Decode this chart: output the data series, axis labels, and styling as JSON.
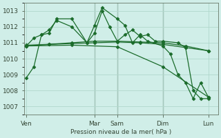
{
  "background_color": "#d0eee8",
  "grid_color": "#b0d8cc",
  "line_color": "#1a6b2a",
  "xlabel": "Pression niveau de la mer( hPa )",
  "ylim": [
    1006.5,
    1013.5
  ],
  "yticks": [
    1007,
    1008,
    1009,
    1010,
    1011,
    1012,
    1013
  ],
  "xtick_labels": [
    "Ven",
    "Mar",
    "Sam",
    "Dim",
    "Lun"
  ],
  "xtick_positions": [
    0,
    9,
    12,
    18,
    24
  ],
  "xlim": [
    -0.3,
    25.3
  ],
  "series": [
    {
      "x": [
        0,
        1,
        2,
        3,
        4,
        6,
        8,
        9,
        10,
        12,
        13,
        14,
        15,
        16,
        18,
        19,
        20,
        21,
        22,
        23,
        24
      ],
      "y": [
        1008.8,
        1009.5,
        1011.5,
        1011.6,
        1012.5,
        1012.5,
        1011.0,
        1012.1,
        1013.2,
        1012.5,
        1012.1,
        1011.0,
        1011.5,
        1011.1,
        1010.8,
        1010.3,
        1009.0,
        1008.5,
        1007.5,
        1008.5,
        1007.6
      ]
    },
    {
      "x": [
        0,
        3,
        6,
        9,
        12,
        15,
        18,
        21,
        24
      ],
      "y": [
        1010.85,
        1010.9,
        1010.95,
        1011.0,
        1011.05,
        1011.0,
        1010.9,
        1010.7,
        1010.5
      ]
    },
    {
      "x": [
        0,
        3,
        6,
        9,
        12,
        15,
        18,
        21,
        24
      ],
      "y": [
        1010.8,
        1010.9,
        1011.0,
        1011.1,
        1011.1,
        1011.05,
        1011.0,
        1010.8,
        1010.5
      ]
    },
    {
      "x": [
        0,
        6,
        12,
        18,
        24
      ],
      "y": [
        1010.8,
        1010.85,
        1010.75,
        1009.5,
        1007.6
      ]
    },
    {
      "x": [
        0,
        1,
        2,
        3,
        4,
        6,
        8,
        9,
        10,
        11,
        12,
        13,
        14,
        15,
        16,
        17,
        18,
        20,
        21,
        22,
        23,
        24
      ],
      "y": [
        1010.8,
        1011.3,
        1011.5,
        1011.8,
        1012.4,
        1012.0,
        1011.0,
        1011.6,
        1013.0,
        1012.0,
        1011.1,
        1011.5,
        1011.8,
        1011.4,
        1011.5,
        1011.1,
        1011.1,
        1011.0,
        1010.7,
        1008.0,
        1007.5,
        1007.5
      ]
    }
  ],
  "vlines_x": [
    9,
    12,
    18
  ],
  "vline_color": "#445544"
}
